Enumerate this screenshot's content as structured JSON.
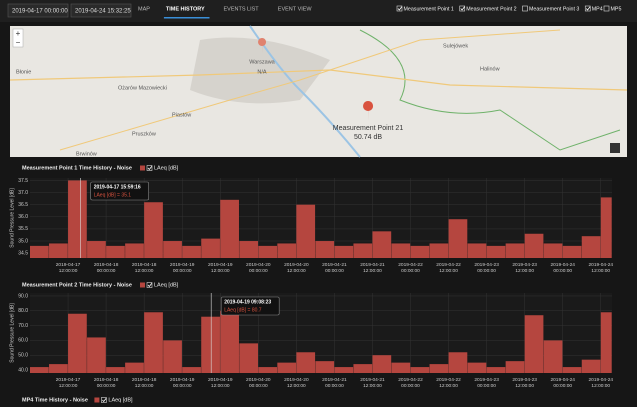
{
  "header": {
    "start": "2019-04-17 00:00:00",
    "end": "2019-04-24 15:32:25",
    "tabs": [
      "MAP",
      "TIME HISTORY",
      "EVENTS LIST",
      "EVENT VIEW"
    ],
    "active_tab": 1,
    "toggles": [
      {
        "label": "Measurement Point 1",
        "checked": true
      },
      {
        "label": "Measurement Point 2",
        "checked": true
      },
      {
        "label": "Measurement Point 3",
        "checked": false
      },
      {
        "label": "MP4",
        "checked": true
      },
      {
        "label": "MP5",
        "checked": false
      }
    ]
  },
  "map": {
    "places": [
      "Sulejówek",
      "Halinów",
      "Błonie",
      "Ożarów Mazowiecki",
      "Piastów",
      "Pruszków",
      "Brwinów"
    ],
    "markers": [
      {
        "name": "Warszawa",
        "value": "N/A"
      },
      {
        "name": "Measurement Point 21",
        "value": "50.74 dB"
      }
    ]
  },
  "chart_data": [
    {
      "type": "bar",
      "title": "Measurement Point 1 Time History - Noise",
      "legend": "LAeq [dB]",
      "y_label": "Sound Pressure Level [dB]",
      "color": "#b5463f",
      "xlim": [
        "2019-04-17 00:00:00",
        "2019-04-24 15:32:25"
      ],
      "xticks": [
        "2019-04-17 12:00:00",
        "2019-04-18 00:00:00",
        "2019-04-18 12:00:00",
        "2019-04-19 00:00:00",
        "2019-04-19 12:00:00",
        "2019-04-20 00:00:00",
        "2019-04-20 12:00:00",
        "2019-04-21 00:00:00",
        "2019-04-21 12:00:00",
        "2019-04-22 00:00:00",
        "2019-04-22 12:00:00",
        "2019-04-23 00:00:00",
        "2019-04-23 12:00:00",
        "2019-04-24 00:00:00",
        "2019-04-24 12:00:00"
      ],
      "ylim": [
        34.3,
        37.6
      ],
      "yticks": [
        {
          "value": 34.5,
          "label": "34.5"
        },
        {
          "value": 35,
          "label": "35.0"
        },
        35.5,
        {
          "value": 36,
          "label": "36.0"
        },
        36.5,
        {
          "value": 37,
          "label": "37.0"
        },
        37.5
      ],
      "x": [
        "2019-04-17 00:00:00",
        "2019-04-17 06:00:00",
        "2019-04-17 12:00:00",
        "2019-04-17 18:00:00",
        "2019-04-18 00:00:00",
        "2019-04-18 06:00:00",
        "2019-04-18 12:00:00",
        "2019-04-18 18:00:00",
        "2019-04-19 00:00:00",
        "2019-04-19 06:00:00",
        "2019-04-19 12:00:00",
        "2019-04-19 18:00:00",
        "2019-04-20 00:00:00",
        "2019-04-20 06:00:00",
        "2019-04-20 12:00:00",
        "2019-04-20 18:00:00",
        "2019-04-21 00:00:00",
        "2019-04-21 06:00:00",
        "2019-04-21 12:00:00",
        "2019-04-21 18:00:00",
        "2019-04-22 00:00:00",
        "2019-04-22 06:00:00",
        "2019-04-22 12:00:00",
        "2019-04-22 18:00:00",
        "2019-04-23 00:00:00",
        "2019-04-23 06:00:00",
        "2019-04-23 12:00:00",
        "2019-04-23 18:00:00",
        "2019-04-24 00:00:00",
        "2019-04-24 06:00:00",
        "2019-04-24 12:00:00"
      ],
      "values": [
        34.8,
        34.9,
        37.5,
        35.0,
        34.8,
        34.9,
        36.6,
        35.0,
        34.8,
        35.1,
        36.7,
        35.0,
        34.8,
        34.9,
        36.5,
        35.0,
        34.8,
        34.9,
        35.4,
        34.9,
        34.8,
        34.9,
        35.9,
        34.9,
        34.8,
        34.9,
        35.3,
        34.9,
        34.8,
        35.2,
        36.8
      ],
      "tooltip": {
        "time": "2019-04-17 15:59:16",
        "text": "LAeq [dB] = 35.1"
      }
    },
    {
      "type": "bar",
      "title": "Measurement Point 2 Time History - Noise",
      "legend": "LAeq [dB]",
      "y_label": "Sound Pressure Level [dB]",
      "color": "#b5463f",
      "xlim": [
        "2019-04-17 00:00:00",
        "2019-04-24 15:32:25"
      ],
      "xticks": [
        "2019-04-17 12:00:00",
        "2019-04-18 00:00:00",
        "2019-04-18 12:00:00",
        "2019-04-19 00:00:00",
        "2019-04-19 12:00:00",
        "2019-04-20 00:00:00",
        "2019-04-20 12:00:00",
        "2019-04-21 00:00:00",
        "2019-04-21 12:00:00",
        "2019-04-22 00:00:00",
        "2019-04-22 12:00:00",
        "2019-04-23 00:00:00",
        "2019-04-23 12:00:00",
        "2019-04-24 00:00:00",
        "2019-04-24 12:00:00"
      ],
      "ylim": [
        38,
        92
      ],
      "yticks": [
        {
          "value": 40,
          "label": "40.0"
        },
        {
          "value": 50,
          "label": "50.0"
        },
        {
          "value": 60,
          "label": "60.0"
        },
        {
          "value": 70,
          "label": "70.0"
        },
        {
          "value": 80,
          "label": "80.0"
        },
        {
          "value": 90,
          "label": "90.0"
        }
      ],
      "x": [
        "2019-04-17 00:00:00",
        "2019-04-17 06:00:00",
        "2019-04-17 12:00:00",
        "2019-04-17 18:00:00",
        "2019-04-18 00:00:00",
        "2019-04-18 06:00:00",
        "2019-04-18 12:00:00",
        "2019-04-18 18:00:00",
        "2019-04-19 00:00:00",
        "2019-04-19 06:00:00",
        "2019-04-19 12:00:00",
        "2019-04-19 18:00:00",
        "2019-04-20 00:00:00",
        "2019-04-20 06:00:00",
        "2019-04-20 12:00:00",
        "2019-04-20 18:00:00",
        "2019-04-21 00:00:00",
        "2019-04-21 06:00:00",
        "2019-04-21 12:00:00",
        "2019-04-21 18:00:00",
        "2019-04-22 00:00:00",
        "2019-04-22 06:00:00",
        "2019-04-22 12:00:00",
        "2019-04-22 18:00:00",
        "2019-04-23 00:00:00",
        "2019-04-23 06:00:00",
        "2019-04-23 12:00:00",
        "2019-04-23 18:00:00",
        "2019-04-24 00:00:00",
        "2019-04-24 06:00:00",
        "2019-04-24 12:00:00"
      ],
      "values": [
        42,
        44,
        78,
        62,
        42,
        45,
        79,
        60,
        42,
        76,
        80,
        58,
        42,
        45,
        52,
        46,
        42,
        44,
        50,
        45,
        42,
        44,
        52,
        45,
        42,
        46,
        77,
        60,
        42,
        47,
        79
      ],
      "tooltip": {
        "time": "2019-04-19 09:08:23",
        "text": "LAeq [dB] = 80.7"
      }
    },
    {
      "type": "bar",
      "title": "MP4 Time History - Noise",
      "legend": "LAeq [dB]"
    }
  ]
}
